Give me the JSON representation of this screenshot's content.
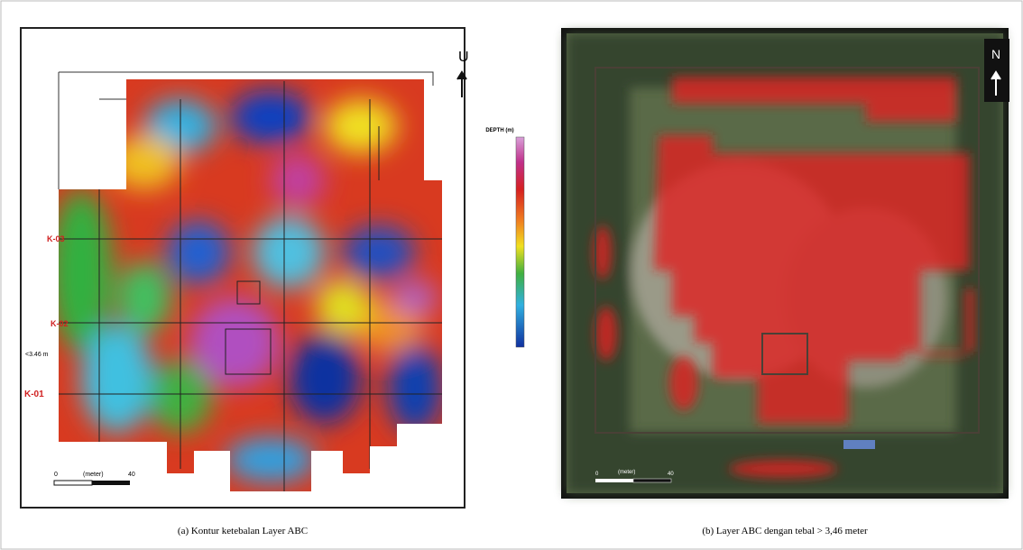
{
  "left_panel": {
    "north_label": "U",
    "legend_title": "DEPTH (m)",
    "line_labels": [
      "K-03",
      "K-02",
      "K-01"
    ],
    "depth_note": "<3.46 m",
    "scale": {
      "start": "0",
      "unit": "(meter)",
      "end": "40"
    },
    "caption": "(a) Kontur ketebalan Layer ABC"
  },
  "right_panel": {
    "north_label": "N",
    "scale": {
      "start": "0",
      "unit": "(meter)",
      "end": "40"
    },
    "caption": "(b) Layer ABC dengan tebal > 3,46 meter"
  }
}
